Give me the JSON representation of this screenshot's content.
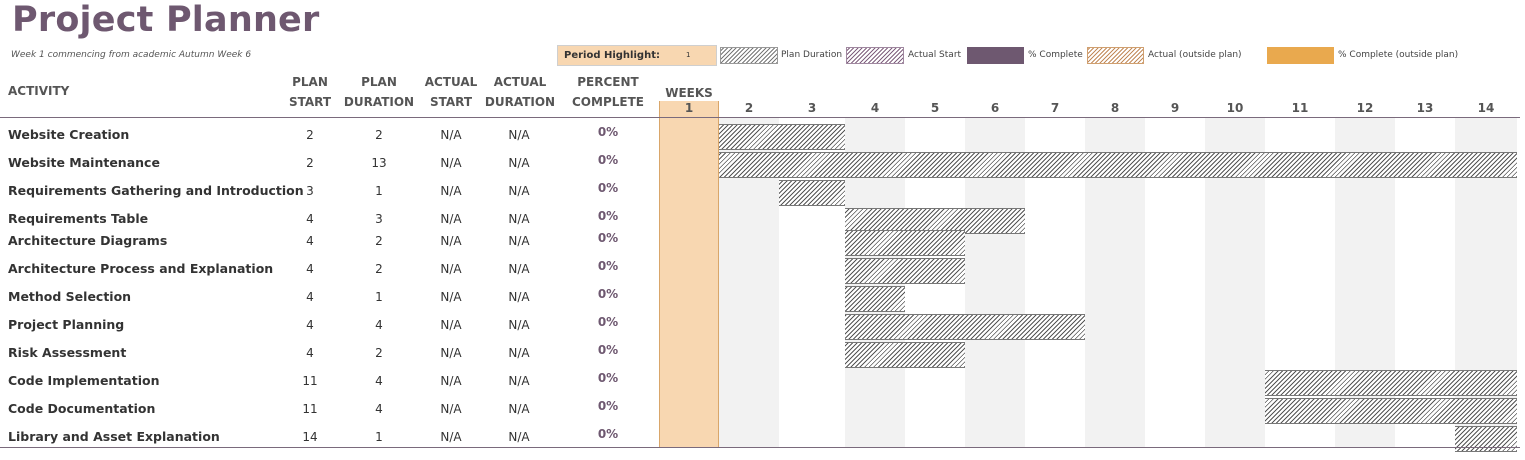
{
  "title": "Project Planner",
  "subtitle": "Week 1 commencing from academic Autumn Week 6",
  "period_highlight": {
    "label": "Period Highlight:",
    "value": "1"
  },
  "legend": [
    {
      "label": "Plan Duration",
      "style": "plan"
    },
    {
      "label": "Actual Start",
      "style": "actual"
    },
    {
      "label": "% Complete",
      "style": "complete"
    },
    {
      "label": "Actual (outside plan)",
      "style": "outside"
    },
    {
      "label": "% Complete (outside plan)",
      "style": "outside-complete"
    }
  ],
  "headers": {
    "activity": "ACTIVITY",
    "plan_start": [
      "PLAN",
      "START"
    ],
    "plan_duration": [
      "PLAN",
      "DURATION"
    ],
    "actual_start": [
      "ACTUAL",
      "START"
    ],
    "actual_duration": [
      "ACTUAL",
      "DURATION"
    ],
    "percent_complete": [
      "PERCENT",
      "COMPLETE"
    ],
    "weeks": "WEEKS"
  },
  "weeks": [
    "1",
    "2",
    "3",
    "4",
    "5",
    "6",
    "7",
    "8",
    "9",
    "10",
    "11",
    "12",
    "13",
    "14"
  ],
  "highlight_week": 1,
  "colors": {
    "accent": "#6e5870",
    "highlight": "#f8d7b1",
    "alt_col": "#f2f2f2"
  },
  "rows": [
    {
      "activity": "Website Creation",
      "plan_start": "2",
      "plan_duration": "2",
      "actual_start": "N/A",
      "actual_duration": "N/A",
      "percent": "0%"
    },
    {
      "activity": "Website Maintenance",
      "plan_start": "2",
      "plan_duration": "13",
      "actual_start": "N/A",
      "actual_duration": "N/A",
      "percent": "0%"
    },
    {
      "activity": "Requirements Gathering and Introduction",
      "plan_start": "3",
      "plan_duration": "1",
      "actual_start": "N/A",
      "actual_duration": "N/A",
      "percent": "0%"
    },
    {
      "activity": "Requirements Table",
      "plan_start": "4",
      "plan_duration": "3",
      "actual_start": "N/A",
      "actual_duration": "N/A",
      "percent": "0%"
    },
    {
      "activity": "Architecture Diagrams",
      "plan_start": "4",
      "plan_duration": "2",
      "actual_start": "N/A",
      "actual_duration": "N/A",
      "percent": "0%"
    },
    {
      "activity": "Architecture Process and Explanation",
      "plan_start": "4",
      "plan_duration": "2",
      "actual_start": "N/A",
      "actual_duration": "N/A",
      "percent": "0%"
    },
    {
      "activity": "Method Selection",
      "plan_start": "4",
      "plan_duration": "1",
      "actual_start": "N/A",
      "actual_duration": "N/A",
      "percent": "0%"
    },
    {
      "activity": "Project Planning",
      "plan_start": "4",
      "plan_duration": "4",
      "actual_start": "N/A",
      "actual_duration": "N/A",
      "percent": "0%"
    },
    {
      "activity": "Risk Assessment",
      "plan_start": "4",
      "plan_duration": "2",
      "actual_start": "N/A",
      "actual_duration": "N/A",
      "percent": "0%"
    },
    {
      "activity": "Code Implementation",
      "plan_start": "11",
      "plan_duration": "4",
      "actual_start": "N/A",
      "actual_duration": "N/A",
      "percent": "0%"
    },
    {
      "activity": "Code Documentation",
      "plan_start": "11",
      "plan_duration": "4",
      "actual_start": "N/A",
      "actual_duration": "N/A",
      "percent": "0%"
    },
    {
      "activity": "Library and Asset Explanation",
      "plan_start": "14",
      "plan_duration": "1",
      "actual_start": "N/A",
      "actual_duration": "N/A",
      "percent": "0%"
    }
  ]
}
